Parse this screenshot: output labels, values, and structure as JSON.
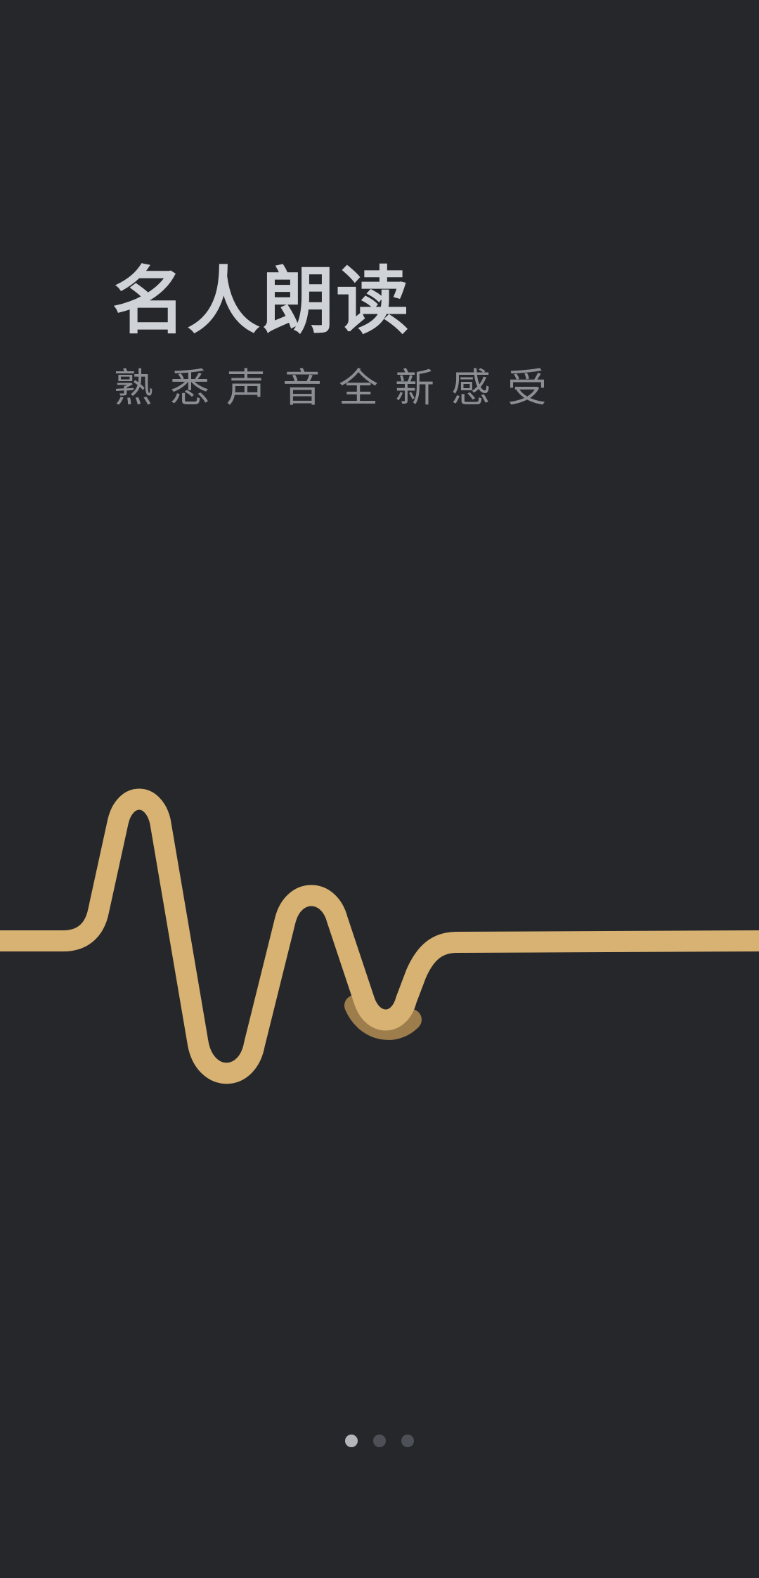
{
  "onboarding": {
    "title": "名人朗读",
    "subtitle": "熟悉声音全新感受",
    "current_page": 1,
    "page_count": 3
  },
  "colors": {
    "background": "#25272b",
    "wave": "#d8b272",
    "wave_shadow": "#b48d54",
    "title": "#cfd2d6",
    "subtitle": "#8b8e93",
    "dot_active": "#b3b6bb",
    "dot_inactive": "#4d5056"
  },
  "icons": {
    "wave": "sound-wave-icon"
  }
}
